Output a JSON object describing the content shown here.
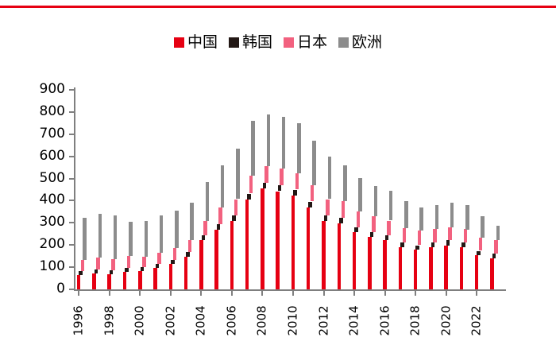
{
  "page": {
    "top_rule_color": "#E60012",
    "background": "#FFFFFF"
  },
  "legend": [
    {
      "label": "中国",
      "color": "#E60012"
    },
    {
      "label": "韩国",
      "color": "#231815"
    },
    {
      "label": "日本",
      "color": "#F2617F"
    },
    {
      "label": "欧洲",
      "color": "#8C8C8C"
    }
  ],
  "chart_data": {
    "type": "bar",
    "stacked": true,
    "title": "",
    "xlabel": "",
    "ylabel": "",
    "ylim": [
      0,
      900
    ],
    "ytick_step": 100,
    "ytick_labels": [
      "0",
      "100",
      "200",
      "300",
      "400",
      "500",
      "600",
      "700",
      "800",
      "900"
    ],
    "grid": false,
    "legend_position": "top-center",
    "categories": [
      1996,
      1997,
      1998,
      1999,
      2000,
      2001,
      2002,
      2003,
      2004,
      2005,
      2006,
      2007,
      2008,
      2009,
      2010,
      2011,
      2012,
      2013,
      2014,
      2015,
      2016,
      2017,
      2018,
      2019,
      2020,
      2021,
      2022,
      2023
    ],
    "xtick_labels": [
      "1996",
      "1998",
      "2000",
      "2002",
      "2004",
      "2006",
      "2008",
      "2010",
      "2012",
      "2014",
      "2016",
      "2018",
      "2020",
      "2022"
    ],
    "series": [
      {
        "key": "china",
        "name": "中国",
        "color": "#E60012",
        "values": [
          64,
          72,
          69,
          80,
          81,
          97,
          115,
          148,
          223,
          269,
          308,
          404,
          455,
          443,
          422,
          368,
          308,
          298,
          259,
          238,
          223,
          189,
          181,
          189,
          197,
          189,
          153,
          141
        ]
      },
      {
        "key": "korea",
        "name": "韩国",
        "color": "#231815",
        "values": [
          18,
          19,
          18,
          18,
          18,
          18,
          17,
          21,
          22,
          24,
          26,
          28,
          25,
          27,
          28,
          28,
          26,
          24,
          22,
          22,
          22,
          22,
          18,
          24,
          24,
          24,
          21,
          22
        ]
      },
      {
        "key": "japan",
        "name": "日本",
        "color": "#F2617F",
        "values": [
          52,
          52,
          50,
          52,
          49,
          51,
          55,
          54,
          63,
          75,
          73,
          81,
          75,
          76,
          75,
          75,
          73,
          76,
          69,
          70,
          65,
          66,
          66,
          60,
          60,
          58,
          58,
          58
        ]
      },
      {
        "key": "europe",
        "name": "欧洲",
        "color": "#8C8C8C",
        "values": [
          189,
          199,
          198,
          156,
          162,
          166,
          169,
          169,
          178,
          190,
          229,
          247,
          235,
          234,
          223,
          199,
          193,
          163,
          153,
          137,
          136,
          121,
          105,
          109,
          111,
          111,
          99,
          65
        ]
      }
    ],
    "totals": [
      323,
      342,
      335,
      306,
      310,
      332,
      356,
      392,
      486,
      558,
      636,
      760,
      790,
      780,
      748,
      670,
      600,
      561,
      503,
      467,
      446,
      398,
      370,
      382,
      392,
      382,
      331,
      286
    ]
  }
}
